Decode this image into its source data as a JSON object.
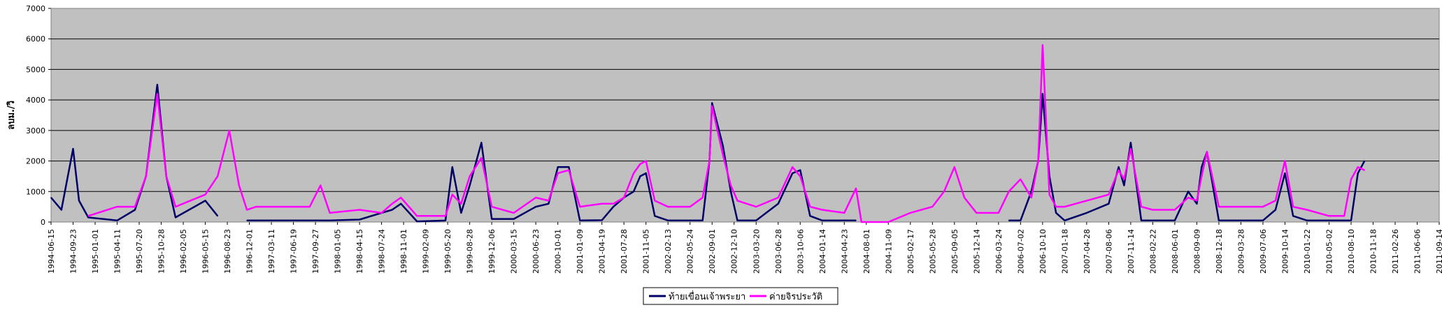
{
  "chart_data": {
    "type": "line",
    "title": "",
    "xlabel": "",
    "ylabel": "ลบม./วิ",
    "ylim": [
      0,
      7000
    ],
    "yticks": [
      0,
      1000,
      2000,
      3000,
      4000,
      5000,
      6000,
      7000
    ],
    "grid": true,
    "legend_position": "bottom-center",
    "colors": {
      "plot_bg": "#c0c0c0",
      "grid": "#000000"
    },
    "x_tick_labels": [
      "1994-06-15",
      "1994-09-23",
      "1995-01-01",
      "1995-04-11",
      "1995-07-20",
      "1995-10-28",
      "1996-02-05",
      "1996-05-15",
      "1996-08-23",
      "1996-12-01",
      "1997-03-11",
      "1997-06-19",
      "1997-09-27",
      "1998-01-05",
      "1998-04-15",
      "1998-07-24",
      "1998-11-01",
      "1999-02-09",
      "1999-05-20",
      "1999-08-28",
      "1999-12-06",
      "2000-03-15",
      "2000-06-23",
      "2000-10-01",
      "2001-01-09",
      "2001-04-19",
      "2001-07-28",
      "2001-11-05",
      "2002-02-13",
      "2002-05-24",
      "2002-09-01",
      "2002-12-10",
      "2003-03-20",
      "2003-06-28",
      "2003-10-06",
      "2004-01-14",
      "2004-04-23",
      "2004-08-01",
      "2004-11-09",
      "2005-02-17",
      "2005-05-28",
      "2005-09-05",
      "2005-12-14",
      "2006-03-24",
      "2006-07-02",
      "2006-10-10",
      "2007-01-18",
      "2007-04-28",
      "2007-08-06",
      "2007-11-14",
      "2008-02-22",
      "2008-06-01",
      "2008-09-09",
      "2008-12-18",
      "2009-03-28",
      "2009-07-06",
      "2009-10-14",
      "2010-01-22",
      "2010-05-02",
      "2010-08-10",
      "2010-11-18",
      "2011-02-26",
      "2011-06-06",
      "2011-09-14"
    ],
    "x": [
      "1994-06-15",
      "1994-08-01",
      "1994-09-23",
      "1994-10-20",
      "1994-12-01",
      "1995-04-11",
      "1995-07-01",
      "1995-08-20",
      "1995-10-10",
      "1995-11-20",
      "1996-01-01",
      "1996-05-15",
      "1996-07-10",
      "1996-09-01",
      "1996-10-15",
      "1996-11-20",
      "1997-01-01",
      "1997-06-19",
      "1997-09-01",
      "1997-10-20",
      "1997-12-01",
      "1998-04-15",
      "1998-07-24",
      "1998-09-10",
      "1998-10-20",
      "1999-01-01",
      "1999-05-10",
      "1999-06-10",
      "1999-07-20",
      "1999-08-28",
      "1999-10-20",
      "1999-12-06",
      "2000-03-15",
      "2000-06-23",
      "2000-08-20",
      "2000-10-01",
      "2000-11-20",
      "2001-01-09",
      "2001-04-19",
      "2001-06-10",
      "2001-07-28",
      "2001-09-10",
      "2001-10-10",
      "2001-11-05",
      "2001-12-15",
      "2002-02-13",
      "2002-05-24",
      "2002-07-20",
      "2002-08-20",
      "2002-09-01",
      "2002-10-20",
      "2002-11-25",
      "2002-12-25",
      "2003-03-20",
      "2003-06-28",
      "2003-09-01",
      "2003-10-06",
      "2003-11-20",
      "2004-01-14",
      "2004-04-23",
      "2004-06-15",
      "2004-07-10",
      "2004-08-01",
      "2004-11-09",
      "2005-02-17",
      "2005-05-28",
      "2005-07-20",
      "2005-09-05",
      "2005-10-20",
      "2005-12-14",
      "2006-03-24",
      "2006-05-10",
      "2006-07-02",
      "2006-08-20",
      "2006-09-20",
      "2006-10-10",
      "2006-11-10",
      "2006-12-10",
      "2007-01-18",
      "2007-04-28",
      "2007-08-06",
      "2007-09-20",
      "2007-10-15",
      "2007-11-14",
      "2008-01-01",
      "2008-02-22",
      "2008-06-01",
      "2008-08-01",
      "2008-09-09",
      "2008-10-01",
      "2008-10-25",
      "2008-12-18",
      "2009-03-28",
      "2009-07-06",
      "2009-09-01",
      "2009-10-14",
      "2009-11-20",
      "2010-01-22",
      "2010-05-02",
      "2010-07-10",
      "2010-08-10",
      "2010-09-10",
      "2010-10-10"
    ],
    "series": [
      {
        "name": "ท้ายเขื่อนเจ้าพระยา",
        "color": "#000066",
        "values": [
          800,
          400,
          2400,
          700,
          150,
          50,
          400,
          1500,
          4500,
          1500,
          150,
          700,
          200,
          null,
          null,
          50,
          50,
          50,
          50,
          50,
          50,
          80,
          300,
          400,
          600,
          20,
          50,
          1800,
          300,
          1200,
          2600,
          100,
          100,
          500,
          600,
          1800,
          1800,
          50,
          60,
          500,
          800,
          1000,
          1500,
          1600,
          200,
          50,
          50,
          50,
          2000,
          3900,
          2500,
          1000,
          50,
          50,
          600,
          1600,
          1700,
          200,
          50,
          50,
          50,
          null,
          null,
          null,
          null,
          null,
          null,
          null,
          null,
          null,
          null,
          50,
          50,
          1000,
          2000,
          4200,
          1500,
          300,
          50,
          300,
          600,
          1800,
          1200,
          2600,
          50,
          50,
          50,
          1000,
          600,
          1800,
          2300,
          50,
          50,
          50,
          400,
          1600,
          200,
          50,
          50,
          50,
          50,
          1600,
          2000
        ]
      },
      {
        "name": "ค่ายจิรประวัติ",
        "color": "#ff00ff",
        "values": [
          null,
          null,
          null,
          null,
          200,
          500,
          500,
          1500,
          4200,
          1500,
          500,
          900,
          1500,
          3000,
          1200,
          400,
          500,
          500,
          500,
          1200,
          300,
          400,
          300,
          600,
          800,
          200,
          200,
          900,
          600,
          1500,
          2100,
          500,
          300,
          800,
          700,
          1600,
          1700,
          500,
          600,
          600,
          800,
          1600,
          1900,
          2000,
          700,
          500,
          500,
          800,
          2000,
          3800,
          2200,
          1200,
          700,
          500,
          800,
          1800,
          1500,
          500,
          400,
          300,
          1100,
          0,
          0,
          0,
          300,
          500,
          1000,
          1800,
          800,
          300,
          300,
          1000,
          1400,
          800,
          2000,
          5800,
          900,
          500,
          500,
          700,
          900,
          1700,
          1400,
          2400,
          500,
          400,
          400,
          800,
          700,
          1500,
          2300,
          500,
          500,
          500,
          700,
          2000,
          500,
          400,
          200,
          200,
          1400,
          1800,
          1700
        ]
      }
    ]
  }
}
